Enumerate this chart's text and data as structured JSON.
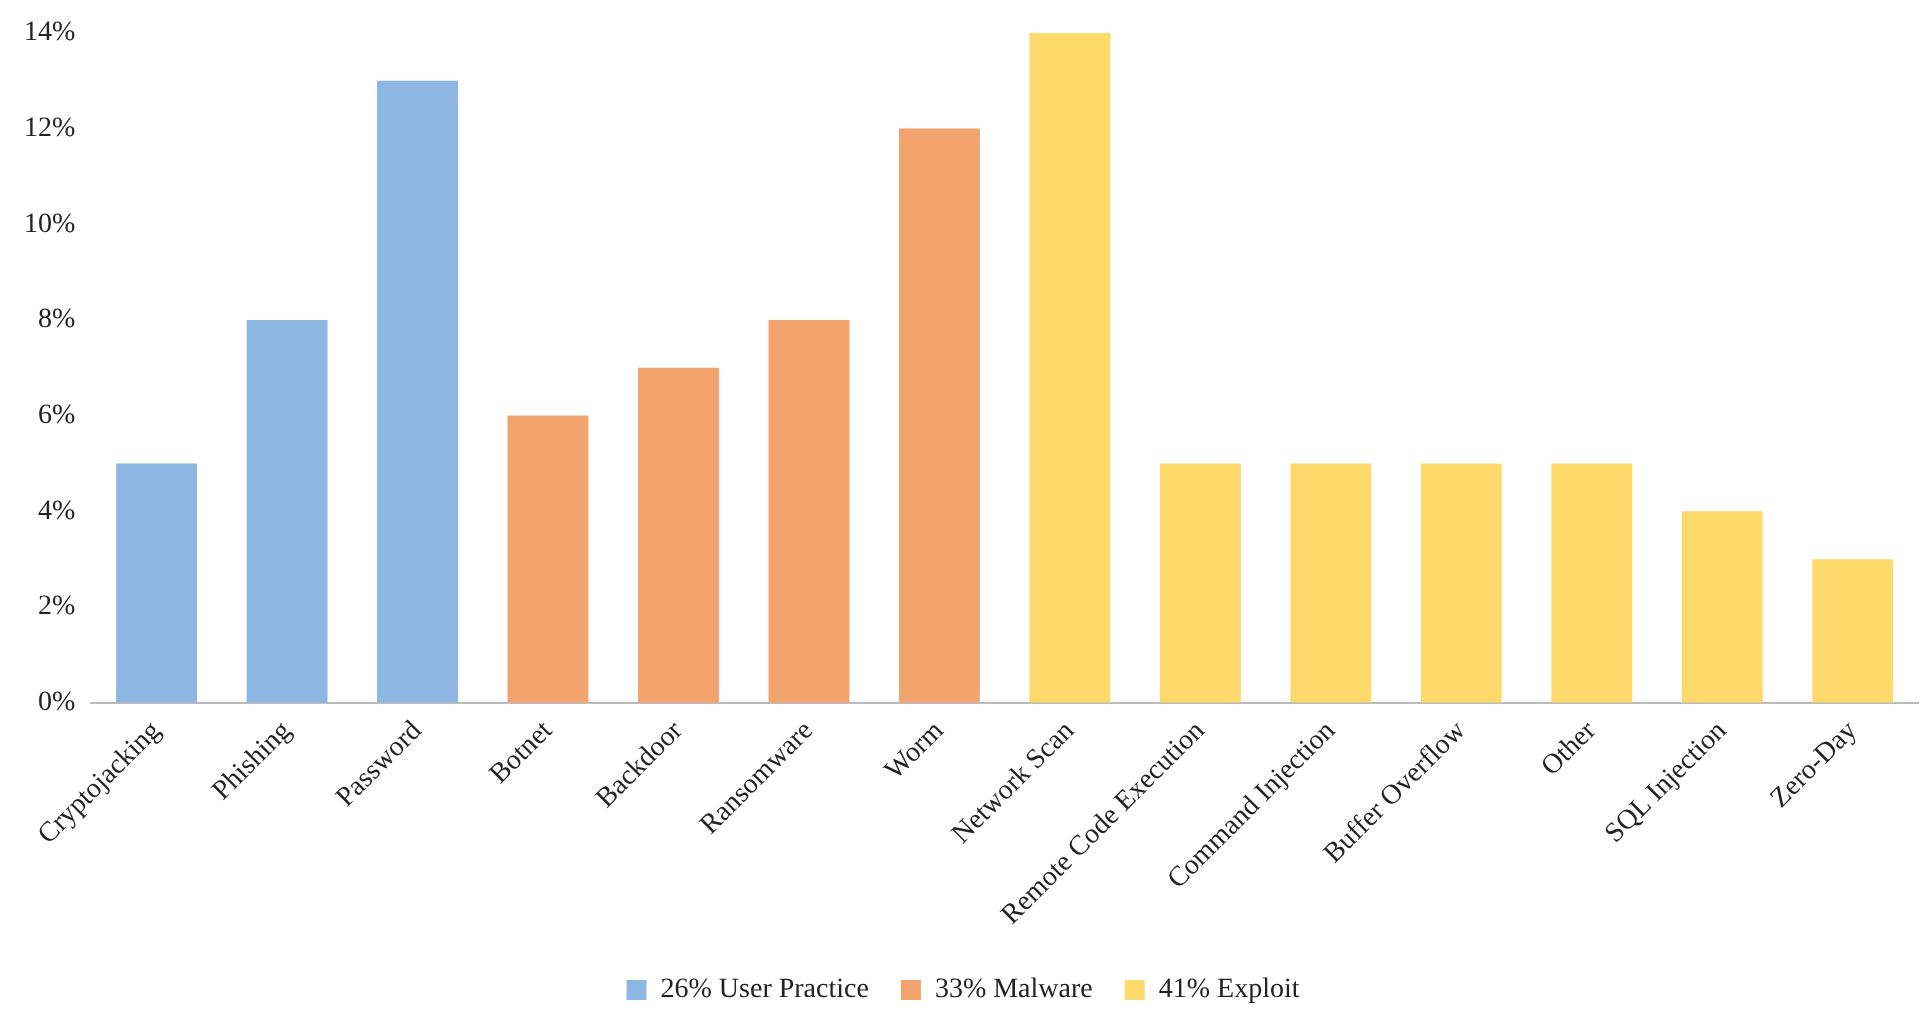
{
  "chart_data": {
    "type": "bar",
    "categories": [
      "Cryptojacking",
      "Phishing",
      "Password",
      "Botnet",
      "Backdoor",
      "Ransomware",
      "Worm",
      "Network Scan",
      "Remote Code Execution",
      "Command Injection",
      "Buffer Overflow",
      "Other",
      "SQL Injection",
      "Zero-Day"
    ],
    "series": [
      {
        "name": "26% User Practice",
        "color": "#8db6e3",
        "values": [
          5,
          8,
          13,
          null,
          null,
          null,
          null,
          null,
          null,
          null,
          null,
          null,
          null,
          null
        ]
      },
      {
        "name": "33% Malware",
        "color": "#f3a36e",
        "values": [
          null,
          null,
          null,
          6,
          7,
          8,
          12,
          null,
          null,
          null,
          null,
          null,
          null,
          null
        ]
      },
      {
        "name": "41% Exploit",
        "color": "#fdd86b",
        "values": [
          null,
          null,
          null,
          null,
          null,
          null,
          null,
          14,
          5,
          5,
          5,
          5,
          4,
          3
        ]
      }
    ],
    "ylim": [
      0,
      14
    ],
    "yticks": [
      {
        "value": 0,
        "label": "0%"
      },
      {
        "value": 2,
        "label": "2%"
      },
      {
        "value": 4,
        "label": "4%"
      },
      {
        "value": 6,
        "label": "6%"
      },
      {
        "value": 8,
        "label": "8%"
      },
      {
        "value": 10,
        "label": "10%"
      },
      {
        "value": 12,
        "label": "12%"
      },
      {
        "value": 14,
        "label": "14%"
      }
    ],
    "grid": false,
    "legend": "bottom"
  }
}
